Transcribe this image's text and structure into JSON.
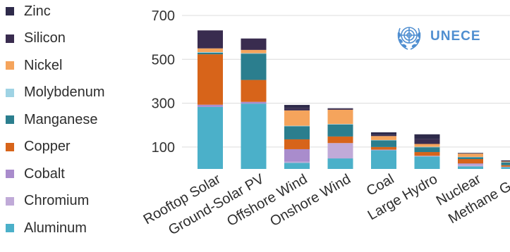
{
  "brand": {
    "logo_text": "UNECE"
  },
  "colors": {
    "Zinc": "#2e2a4a",
    "Silicon": "#392c4f",
    "Nickel": "#f5a45c",
    "Molybdenum": "#9fd3e4",
    "Manganese": "#2b7e8e",
    "Copper": "#d7641a",
    "Cobalt": "#a98ccc",
    "Chromium": "#c0aad8",
    "Aluminum": "#4bb0c9"
  },
  "chart_data": {
    "type": "bar",
    "stacked": true,
    "categories": [
      "Rooftop Solar",
      "Ground-Solar PV",
      "Offshore Wind",
      "Onshore Wind",
      "Coal",
      "Large Hydro",
      "Nuclear",
      "Methane Gas"
    ],
    "yticks": [
      100,
      300,
      500,
      700
    ],
    "ylim": [
      0,
      700
    ],
    "grid": true,
    "legend_position": "left",
    "series": [
      {
        "name": "Aluminum",
        "values": [
          283,
          298,
          28,
          48,
          85,
          57,
          12,
          8
        ]
      },
      {
        "name": "Chromium",
        "values": [
          0,
          0,
          5,
          70,
          3,
          3,
          8,
          2
        ]
      },
      {
        "name": "Cobalt",
        "values": [
          10,
          8,
          57,
          0,
          0,
          0,
          5,
          0
        ]
      },
      {
        "name": "Copper",
        "values": [
          230,
          100,
          45,
          30,
          12,
          17,
          20,
          7
        ]
      },
      {
        "name": "Manganese",
        "values": [
          7,
          120,
          60,
          55,
          30,
          22,
          8,
          13
        ]
      },
      {
        "name": "Molybdenum",
        "values": [
          3,
          2,
          2,
          2,
          2,
          2,
          2,
          1
        ]
      },
      {
        "name": "Nickel",
        "values": [
          17,
          15,
          70,
          65,
          18,
          13,
          15,
          3
        ]
      },
      {
        "name": "Silicon",
        "values": [
          82,
          52,
          10,
          5,
          5,
          22,
          0,
          0
        ]
      },
      {
        "name": "Zinc",
        "values": [
          0,
          0,
          15,
          2,
          12,
          22,
          3,
          5
        ]
      }
    ],
    "legend": [
      "Zinc",
      "Silicon",
      "Nickel",
      "Molybdenum",
      "Manganese",
      "Copper",
      "Cobalt",
      "Chromium",
      "Aluminum"
    ]
  }
}
